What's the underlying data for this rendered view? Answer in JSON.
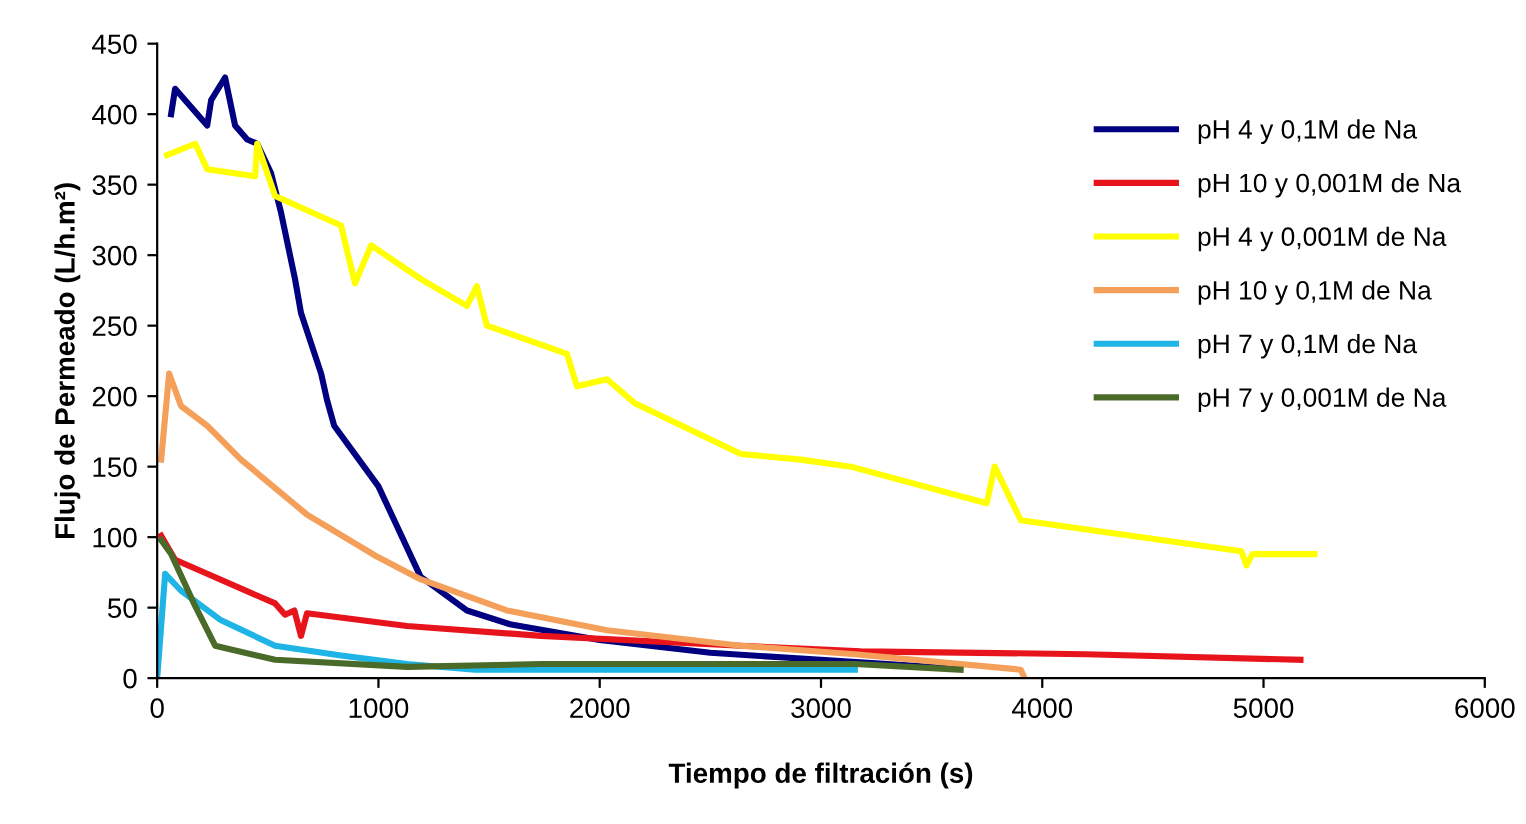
{
  "chart_data": {
    "type": "line",
    "xlabel": "Tiempo de filtración (s)",
    "ylabel": "Flujo de Permeado (L/h.m²)",
    "xlim": [
      0,
      6000
    ],
    "xticks": [
      0,
      1000,
      2000,
      3000,
      4000,
      5000,
      6000
    ],
    "ylim": [
      0,
      450
    ],
    "yticks": [
      0,
      50,
      100,
      150,
      200,
      250,
      300,
      350,
      400,
      450
    ],
    "grid": false,
    "legend": "right",
    "marker": "none",
    "line_style": "solid",
    "series": [
      {
        "name": "pH 4 y 0,1M de Na",
        "color": "#000080",
        "x": [
          63,
          81,
          226,
          244,
          307,
          352,
          407,
          452,
          515,
          560,
          623,
          650,
          741,
          768,
          800,
          1000,
          1190,
          1400,
          1600,
          2000,
          2500,
          3000,
          3300,
          3600
        ],
        "values": [
          400,
          418,
          392,
          410,
          426,
          392,
          382,
          379,
          358,
          330,
          283,
          259,
          216,
          197,
          179,
          136,
          72,
          48,
          38,
          27,
          18,
          13,
          10,
          7
        ]
      },
      {
        "name": "pH 10 y 0,001M de Na",
        "color": "#e8141b",
        "x": [
          18,
          81,
          226,
          533,
          578,
          620,
          650,
          677,
          1129,
          1734,
          2638,
          3180,
          4200,
          5167
        ],
        "values": [
          101,
          84,
          74,
          53,
          45,
          48,
          30,
          46,
          37,
          30,
          23,
          19,
          17,
          13
        ]
      },
      {
        "name": "pH 4 y 0,001M de Na",
        "color": "#ffff00",
        "x": [
          45,
          172,
          226,
          443,
          452,
          533,
          831,
          894,
          967,
          1192,
          1400,
          1445,
          1490,
          1852,
          1897,
          2033,
          2159,
          2638,
          2909,
          3135,
          3749,
          3785,
          3903,
          4900,
          4923,
          4950,
          5230
        ],
        "values": [
          371,
          379,
          361,
          356,
          379,
          342,
          321,
          280,
          307,
          283,
          264,
          278,
          250,
          230,
          207,
          212,
          195,
          159,
          155,
          150,
          124,
          150,
          112,
          90,
          80,
          88,
          88
        ]
      },
      {
        "name": "pH 10 y 0,1M de Na",
        "color": "#f5a05a",
        "x": [
          18,
          54,
          108,
          226,
          379,
          677,
          984,
          1192,
          1580,
          2033,
          2638,
          3153,
          3903,
          3920
        ],
        "values": [
          155,
          216,
          193,
          179,
          155,
          116,
          87,
          70,
          48,
          34,
          23,
          17,
          6,
          0
        ]
      },
      {
        "name": "pH 7 y 0,1M de Na",
        "color": "#1eb4e6",
        "x": [
          0,
          36,
          108,
          289,
          533,
          831,
          1129,
          1436,
          2340,
          3153
        ],
        "values": [
          0,
          74,
          62,
          41,
          23,
          16,
          10,
          6,
          6,
          6
        ]
      },
      {
        "name": "pH 7 y 0,001M de Na",
        "color": "#4a6a2a",
        "x": [
          18,
          63,
          172,
          262,
          533,
          1129,
          1734,
          3153,
          3631
        ],
        "values": [
          98,
          88,
          51,
          23,
          13,
          8,
          10,
          10,
          6
        ]
      }
    ]
  }
}
